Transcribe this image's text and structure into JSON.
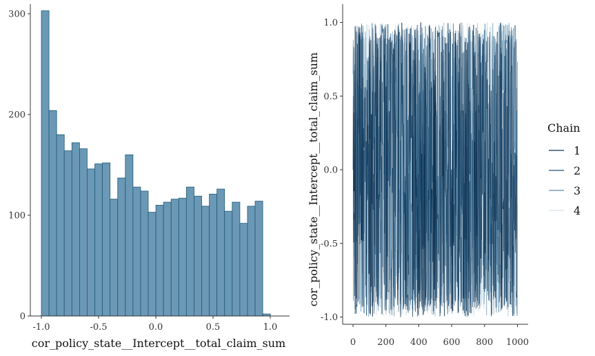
{
  "chart_data": [
    {
      "type": "bar",
      "subtype": "histogram",
      "xlabel": "cor_policy_state__Intercept__total_claim_sum",
      "ylabel": "",
      "xlim": [
        -1.1,
        1.1
      ],
      "ylim": [
        0,
        310
      ],
      "xticks": [
        "-1.0",
        "-0.5",
        "0.0",
        "0.5",
        "1.0"
      ],
      "yticks": [
        "0",
        "100",
        "200",
        "300"
      ],
      "bin_width": 0.0667,
      "bin_start": -1.0,
      "values": [
        303,
        204,
        180,
        164,
        172,
        166,
        146,
        151,
        152,
        116,
        137,
        160,
        128,
        124,
        103,
        110,
        113,
        116,
        117,
        128,
        119,
        109,
        121,
        126,
        104,
        113,
        92,
        109,
        114,
        2
      ],
      "fill_color": "#6a98b5",
      "edge_color": "#1f5a7a",
      "grid": false
    },
    {
      "type": "line",
      "subtype": "trace",
      "xlabel": "",
      "ylabel": "cor_policy_state__Intercept__total_claim_sum",
      "xlim": [
        -20,
        1025
      ],
      "ylim": [
        -1.05,
        1.05
      ],
      "xticks": [
        "0",
        "200",
        "400",
        "600",
        "800",
        "1000"
      ],
      "yticks": [
        "-1.0",
        "-0.5",
        "0.0",
        "0.5",
        "1.0"
      ],
      "iterations": 1000,
      "value_range": [
        -1.0,
        1.0
      ],
      "legend": {
        "title": "Chain",
        "placement": "right"
      },
      "series": [
        {
          "name": "1",
          "color": "#0b2f4f"
        },
        {
          "name": "2",
          "color": "#1d5077"
        },
        {
          "name": "3",
          "color": "#5a8caf"
        },
        {
          "name": "4",
          "color": "#d2e2ec"
        }
      ],
      "grid": false
    }
  ]
}
